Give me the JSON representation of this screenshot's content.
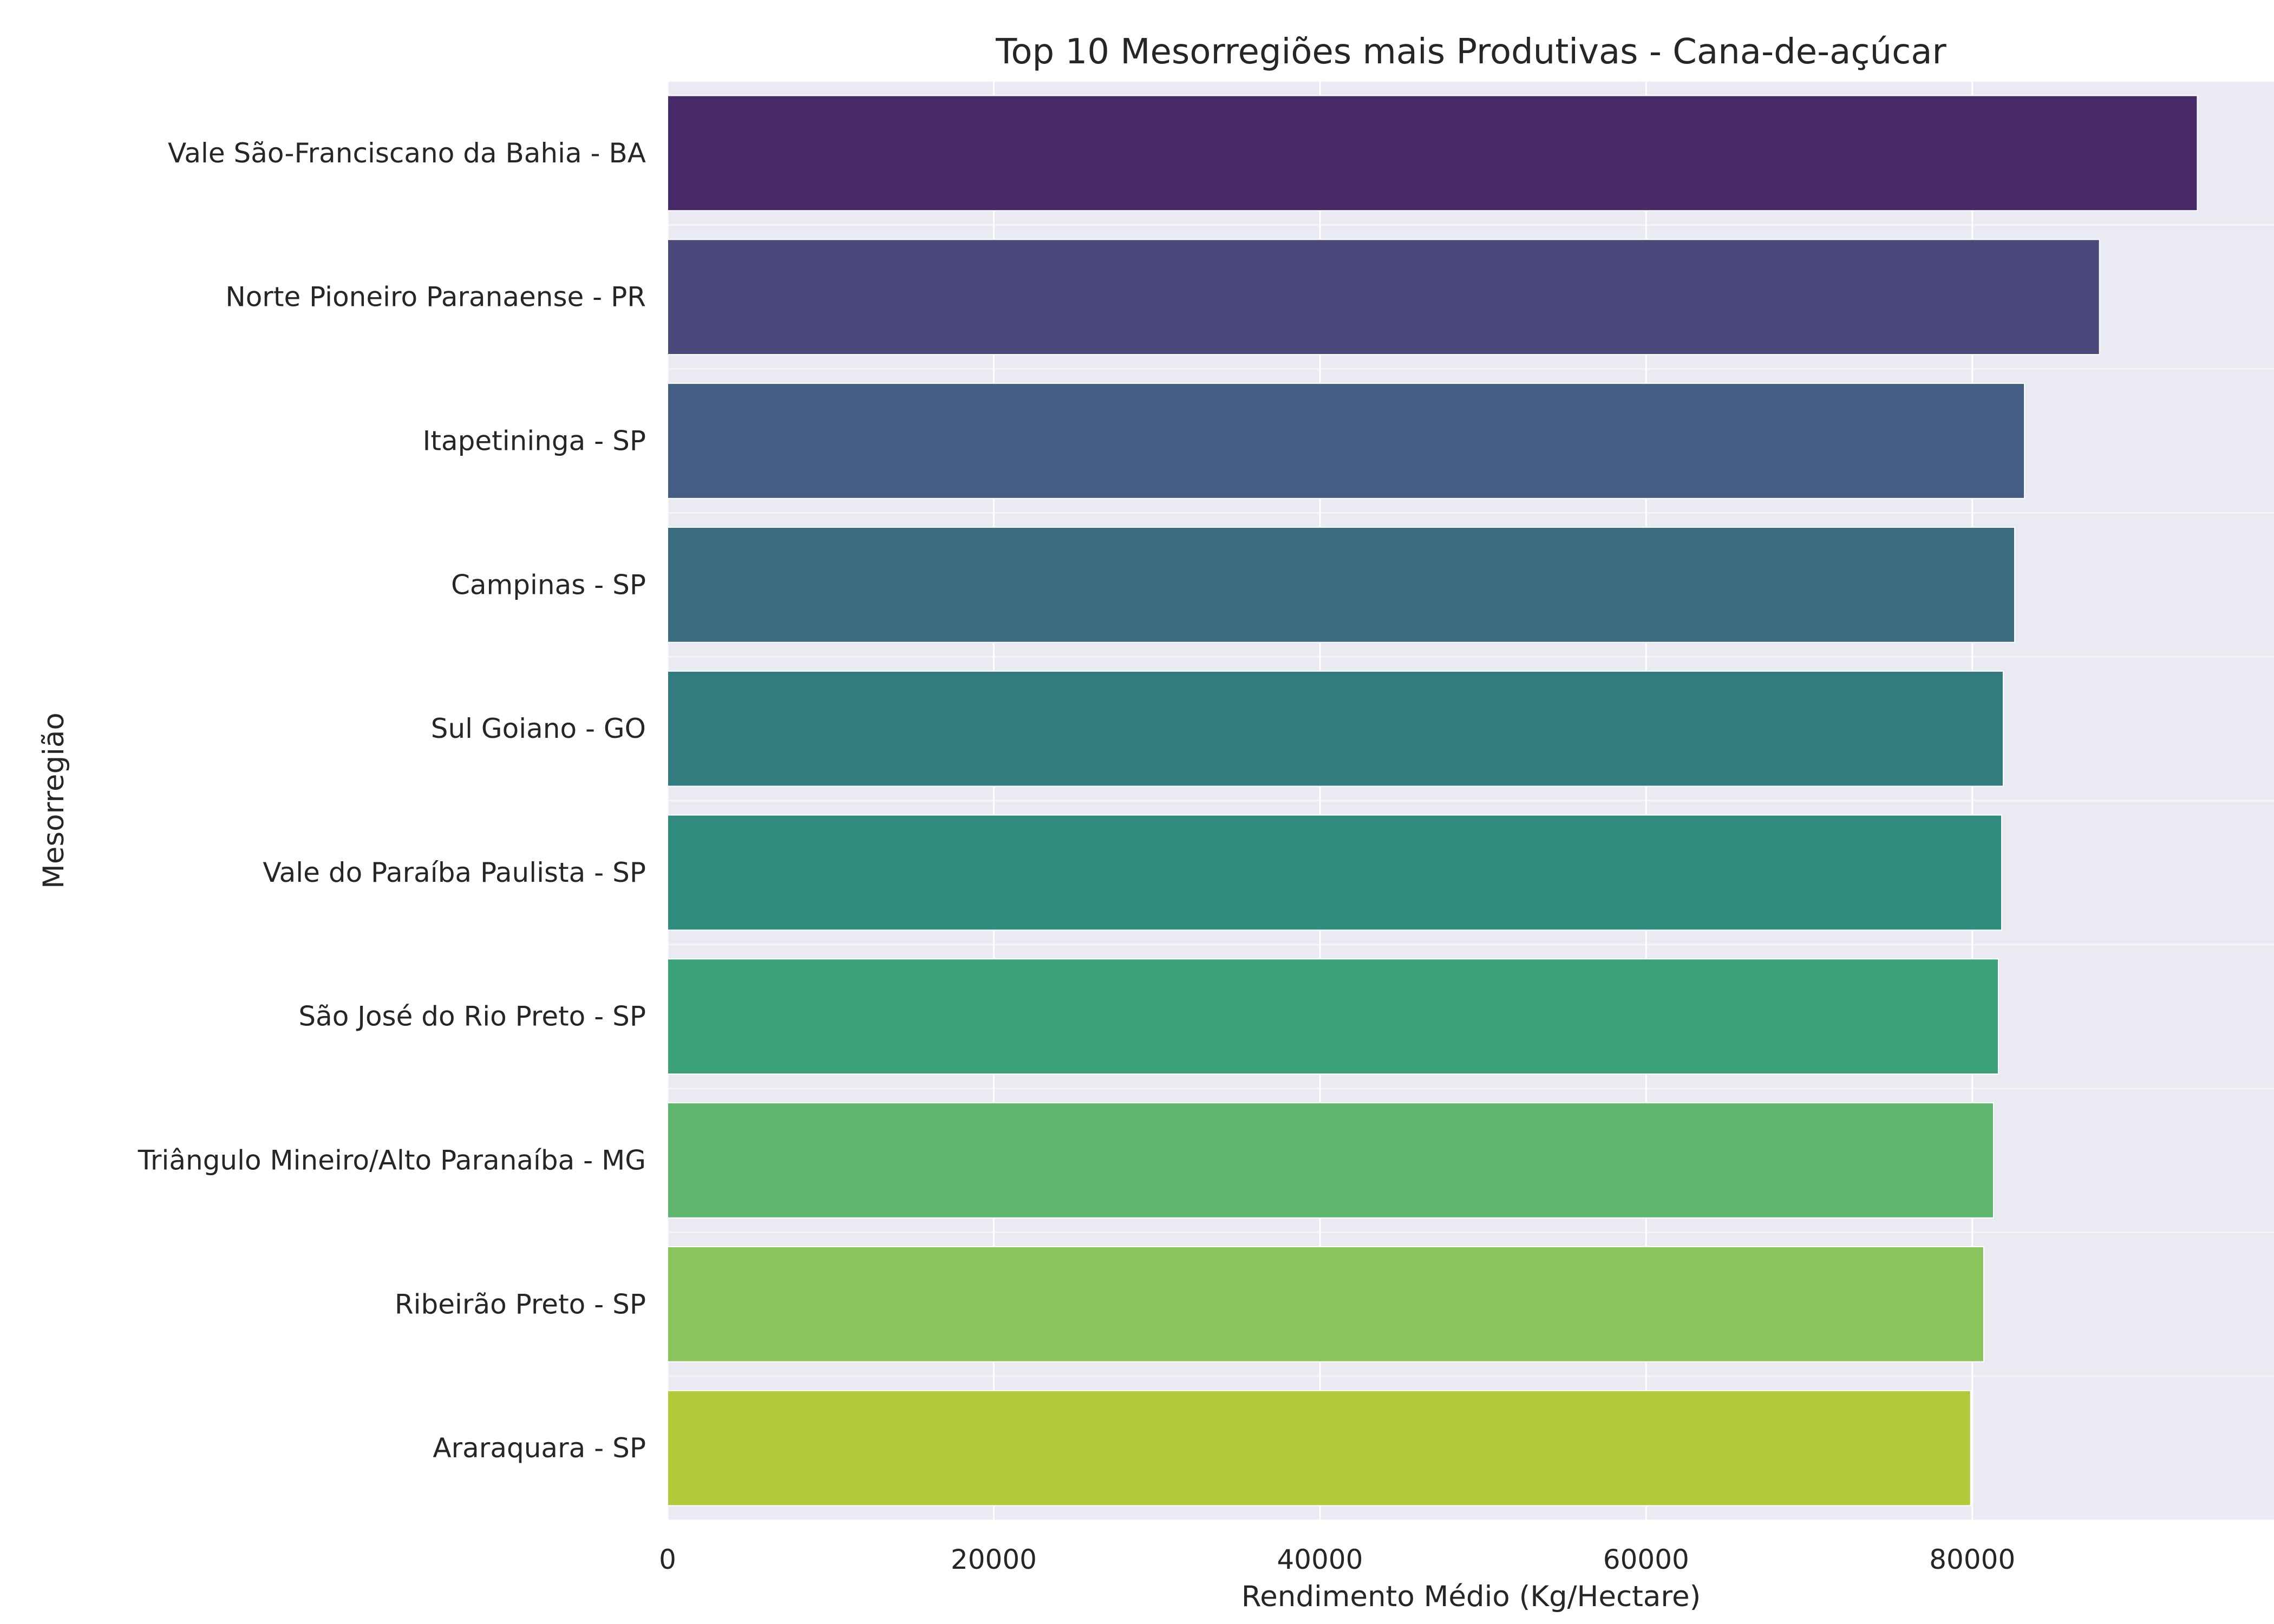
{
  "chart_data": {
    "type": "bar",
    "orientation": "horizontal",
    "title": "Top 10 Mesorregiões mais Produtivas - Cana-de-açúcar",
    "xlabel": "Rendimento Médio (Kg/Hectare)",
    "ylabel": "Mesorregião",
    "xlim": [
      0,
      98500
    ],
    "xticks": [
      0,
      20000,
      40000,
      60000,
      80000
    ],
    "grid": true,
    "categories": [
      "Vale São-Franciscano da Bahia - BA",
      "Norte Pioneiro Paranaense - PR",
      "Itapetininga - SP",
      "Campinas - SP",
      "Sul Goiano - GO",
      "Vale do Paraíba Paulista - SP",
      "São José do Rio Preto - SP",
      "Triângulo Mineiro/Alto Paranaíba - MG",
      "Ribeirão Preto - SP",
      "Araraquara - SP"
    ],
    "values": [
      93800,
      87800,
      83200,
      82600,
      81900,
      81800,
      81600,
      81300,
      80700,
      79900
    ],
    "colors": [
      "#482a69",
      "#4b487c",
      "#445e83",
      "#3a6c82",
      "#327c80",
      "#2f8c7e",
      "#3ca178",
      "#5fb66f",
      "#89c45c",
      "#b2c93a"
    ],
    "background": "#eaeaf2"
  }
}
